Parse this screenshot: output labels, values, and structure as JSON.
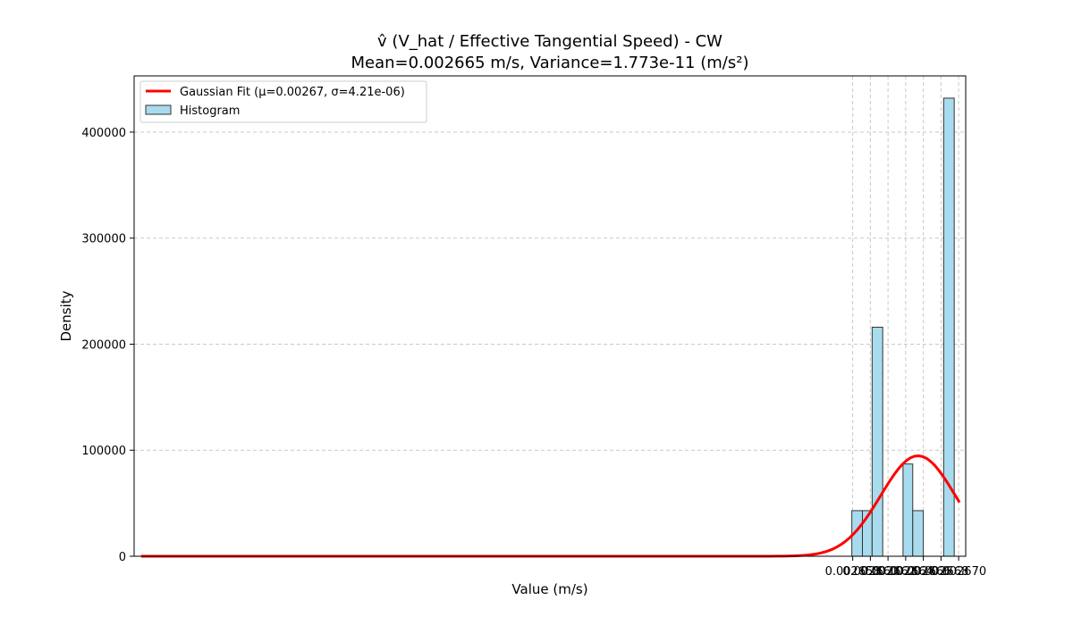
{
  "chart_data": {
    "type": "bar",
    "title": "v̂ (V_hat / Effective Tangential Speed) - CW",
    "subtitle": "Mean=0.002665 m/s, Variance=1.773e-11 (m/s²)",
    "xlabel": "Value (m/s)",
    "ylabel": "Density",
    "xlim": [
      0.0025766,
      0.0026708
    ],
    "ylim": [
      0,
      453000
    ],
    "grid": true,
    "legend_position": "top-left",
    "x_ticks": [
      0.002658,
      0.00266,
      0.002662,
      0.002664,
      0.002666,
      0.002668,
      0.00267
    ],
    "x_tick_labels": [
      "0.002658",
      "0.002660",
      "0.002662",
      "0.002664",
      "0.002666",
      "0.002668",
      "0.002670"
    ],
    "y_ticks": [
      0,
      100000,
      200000,
      300000,
      400000
    ],
    "y_tick_labels": [
      "0",
      "100000",
      "200000",
      "300000",
      "400000"
    ],
    "histogram": {
      "name": "Histogram",
      "color": "#a8dbed",
      "edge_color": "#333333",
      "bin_edges": [
        0.0026579,
        0.0026591,
        0.0026602,
        0.0026614,
        0.0026625,
        0.0026637,
        0.0026648,
        0.002666,
        0.0026671,
        0.0026683,
        0.0026695
      ],
      "values": [
        43000,
        43000,
        216000,
        0,
        0,
        87000,
        43000,
        0,
        0,
        432000
      ]
    },
    "gaussian_fit": {
      "name": "Gaussian Fit (μ=0.00267, σ=4.21e-06)",
      "color": "#ff0000",
      "mu": 0.0026654,
      "sigma": 4.21e-06,
      "x_range": [
        0.0025774,
        0.0026701
      ]
    }
  }
}
